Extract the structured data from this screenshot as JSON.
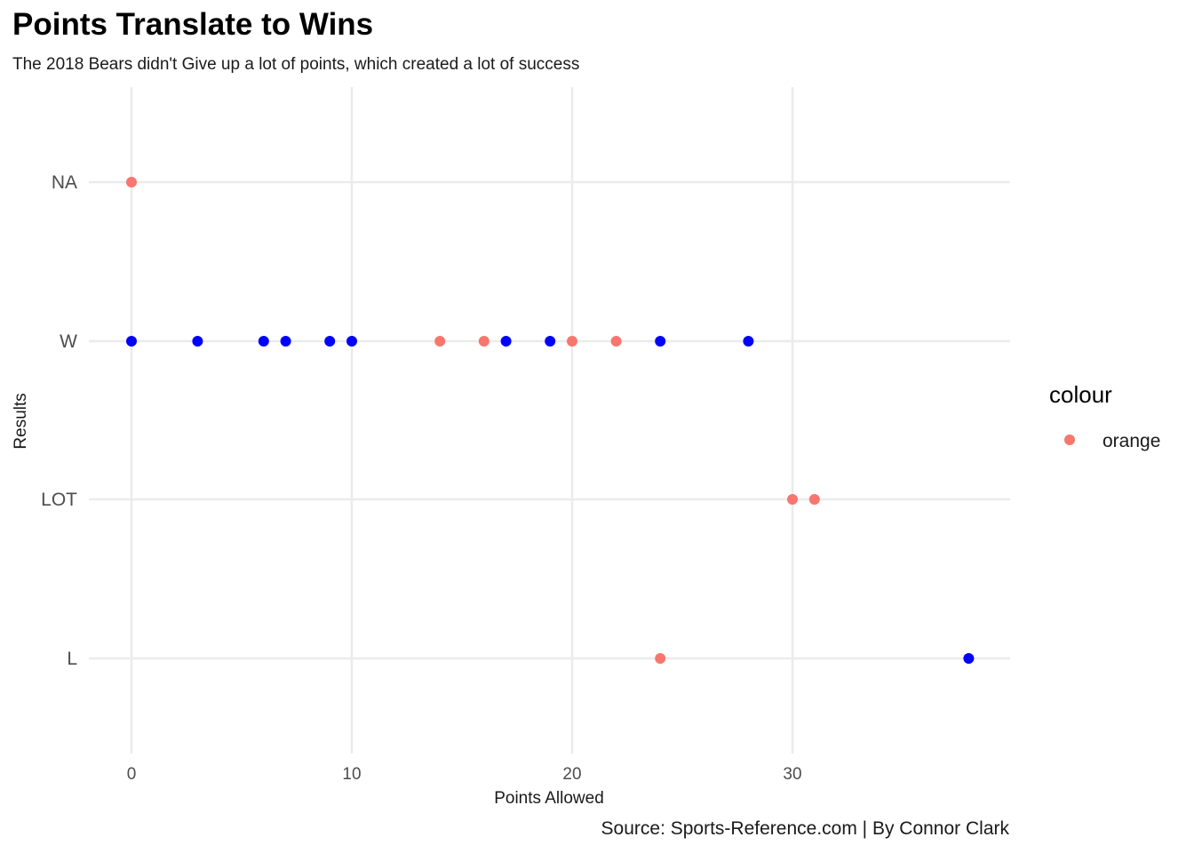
{
  "title": "Points Translate to Wins",
  "subtitle": "The 2018 Bears didn't Give up a lot of points, which created a lot of success",
  "caption": "Source: Sports-Reference.com | By Connor Clark",
  "colors": {
    "orange_mapped": "#F8766D",
    "blue": "#0000FF",
    "grid": "#EBEBEB"
  },
  "legend": {
    "title": "colour",
    "items": [
      {
        "label": "orange",
        "color": "#F8766D"
      }
    ]
  },
  "chart_data": {
    "type": "scatter",
    "title": "Points Translate to Wins",
    "subtitle": "The 2018 Bears didn't Give up a lot of points, which created a lot of success",
    "xlabel": "Points Allowed",
    "ylabel": "Results",
    "xlim": [
      -2,
      40
    ],
    "x_ticks": [
      0,
      10,
      20,
      30
    ],
    "y_categories": [
      "L",
      "LOT",
      "W",
      "NA"
    ],
    "grid": true,
    "legend_position": "right",
    "series": [
      {
        "name": "orange",
        "color": "#F8766D",
        "points": [
          {
            "x": 0,
            "y": "NA"
          },
          {
            "x": 14,
            "y": "W"
          },
          {
            "x": 16,
            "y": "W"
          },
          {
            "x": 20,
            "y": "W"
          },
          {
            "x": 22,
            "y": "W"
          },
          {
            "x": 30,
            "y": "LOT"
          },
          {
            "x": 31,
            "y": "LOT"
          },
          {
            "x": 24,
            "y": "L"
          }
        ]
      },
      {
        "color": "#0000FF",
        "points": [
          {
            "x": 0,
            "y": "W"
          },
          {
            "x": 3,
            "y": "W"
          },
          {
            "x": 6,
            "y": "W"
          },
          {
            "x": 7,
            "y": "W"
          },
          {
            "x": 9,
            "y": "W"
          },
          {
            "x": 10,
            "y": "W"
          },
          {
            "x": 17,
            "y": "W"
          },
          {
            "x": 19,
            "y": "W"
          },
          {
            "x": 24,
            "y": "W"
          },
          {
            "x": 28,
            "y": "W"
          },
          {
            "x": 38,
            "y": "L"
          }
        ]
      }
    ]
  }
}
